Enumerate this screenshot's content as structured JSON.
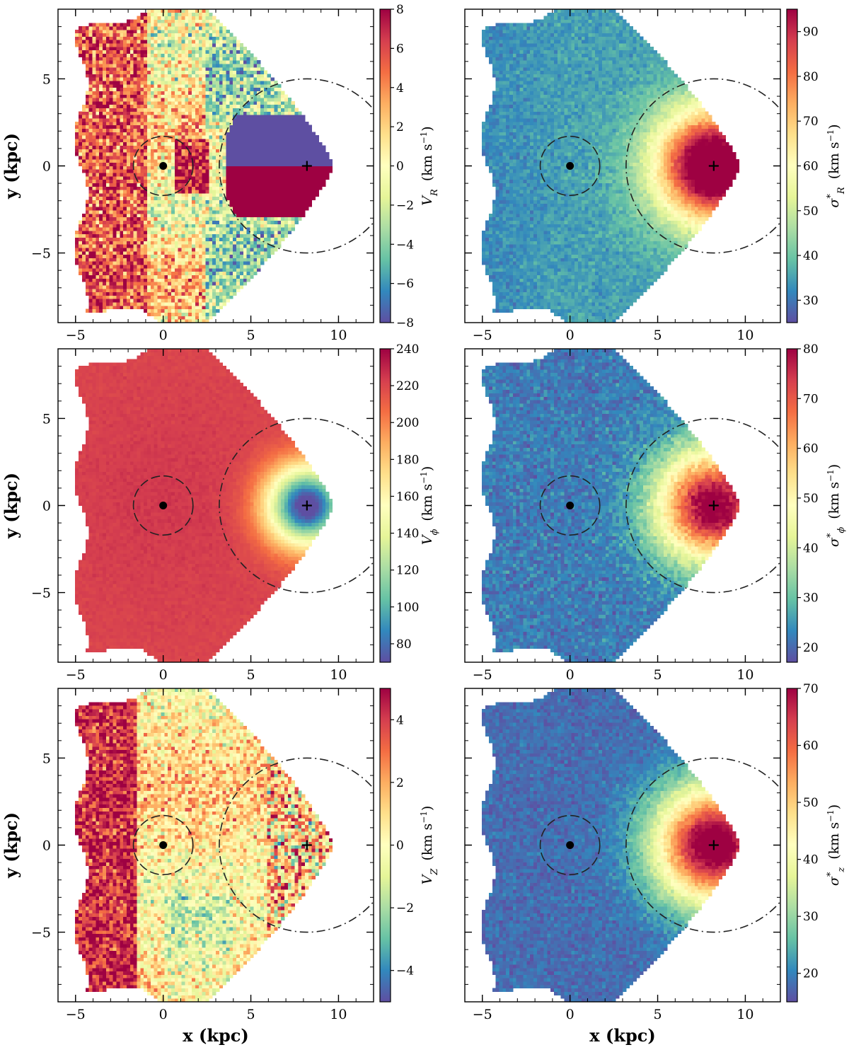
{
  "chart_data": [
    {
      "type": "heatmap",
      "panel": "top-left",
      "xlabel": "",
      "ylabel": "y (kpc)",
      "colorbar_label": "V_R (km s^-1)",
      "cbar_sym": "V",
      "cbar_sub": "R",
      "cbar_sup": "",
      "cbar_unit": "(km s",
      "colormap": "Spectral_r",
      "xlim": [
        -6,
        12
      ],
      "ylim": [
        -9,
        9
      ],
      "xticks": [
        -5,
        0,
        5,
        10
      ],
      "yticks": [
        -5,
        0,
        5
      ],
      "xtick_labels": [
        "−5",
        "0",
        "5",
        "10"
      ],
      "ytick_labels": [
        "−5",
        "0",
        "5"
      ],
      "cbar_range": [
        -8,
        8
      ],
      "cbar_ticks": [
        -8,
        -6,
        -4,
        -2,
        0,
        2,
        4,
        6,
        8
      ],
      "cbar_tick_labels": [
        "−8",
        "−6",
        "−4",
        "−2",
        "0",
        "2",
        "4",
        "6",
        "8"
      ],
      "field": "VR",
      "markers": [
        {
          "shape": "dot",
          "x": 0,
          "y": 0
        },
        {
          "shape": "plus",
          "x": 8.2,
          "y": 0
        }
      ],
      "circles": [
        {
          "cx": 0,
          "cy": 0,
          "r": 1.7
        },
        {
          "cx": 8.2,
          "cy": 0,
          "r": 5
        }
      ]
    },
    {
      "type": "heatmap",
      "panel": "top-right",
      "xlabel": "",
      "ylabel": "",
      "colorbar_label": "σ*_R (km s^-1)",
      "cbar_sym": "σ",
      "cbar_sub": "R",
      "cbar_sup": "*",
      "cbar_unit": "(km s",
      "colormap": "Spectral_r",
      "xlim": [
        -6,
        12
      ],
      "ylim": [
        -9,
        9
      ],
      "xticks": [
        -5,
        0,
        5,
        10
      ],
      "yticks": [
        -5,
        0,
        5
      ],
      "xtick_labels": [
        "−5",
        "0",
        "5",
        "10"
      ],
      "ytick_labels": [
        "",
        "",
        ""
      ],
      "cbar_range": [
        25,
        95
      ],
      "cbar_ticks": [
        30,
        40,
        50,
        60,
        70,
        80,
        90
      ],
      "cbar_tick_labels": [
        "30",
        "40",
        "50",
        "60",
        "70",
        "80",
        "90"
      ],
      "field": "SR",
      "markers": [
        {
          "shape": "dot",
          "x": 0,
          "y": 0
        },
        {
          "shape": "plus",
          "x": 8.2,
          "y": 0
        }
      ],
      "circles": [
        {
          "cx": 0,
          "cy": 0,
          "r": 1.7
        },
        {
          "cx": 8.2,
          "cy": 0,
          "r": 5
        }
      ]
    },
    {
      "type": "heatmap",
      "panel": "middle-left",
      "xlabel": "",
      "ylabel": "y (kpc)",
      "colorbar_label": "V_φ (km s^-1)",
      "cbar_sym": "V",
      "cbar_sub": "ϕ",
      "cbar_sup": "",
      "cbar_unit": "(km s",
      "colormap": "Spectral_r",
      "xlim": [
        -6,
        12
      ],
      "ylim": [
        -9,
        9
      ],
      "xticks": [
        -5,
        0,
        5,
        10
      ],
      "yticks": [
        -5,
        0,
        5
      ],
      "xtick_labels": [
        "−5",
        "0",
        "5",
        "10"
      ],
      "ytick_labels": [
        "−5",
        "0",
        "5"
      ],
      "cbar_range": [
        70,
        240
      ],
      "cbar_ticks": [
        80,
        100,
        120,
        140,
        160,
        180,
        200,
        220,
        240
      ],
      "cbar_tick_labels": [
        "80",
        "100",
        "120",
        "140",
        "160",
        "180",
        "200",
        "220",
        "240"
      ],
      "field": "VP",
      "markers": [
        {
          "shape": "dot",
          "x": 0,
          "y": 0
        },
        {
          "shape": "plus",
          "x": 8.2,
          "y": 0
        }
      ],
      "circles": [
        {
          "cx": 0,
          "cy": 0,
          "r": 1.7
        },
        {
          "cx": 8.2,
          "cy": 0,
          "r": 5
        }
      ]
    },
    {
      "type": "heatmap",
      "panel": "middle-right",
      "xlabel": "",
      "ylabel": "",
      "colorbar_label": "σ*_φ (km s^-1)",
      "cbar_sym": "σ",
      "cbar_sub": "ϕ",
      "cbar_sup": "*",
      "cbar_unit": "(km s",
      "colormap": "Spectral_r",
      "xlim": [
        -6,
        12
      ],
      "ylim": [
        -9,
        9
      ],
      "xticks": [
        -5,
        0,
        5,
        10
      ],
      "yticks": [
        -5,
        0,
        5
      ],
      "xtick_labels": [
        "−5",
        "0",
        "5",
        "10"
      ],
      "ytick_labels": [
        "",
        "",
        ""
      ],
      "cbar_range": [
        17,
        80
      ],
      "cbar_ticks": [
        20,
        30,
        40,
        50,
        60,
        70,
        80
      ],
      "cbar_tick_labels": [
        "20",
        "30",
        "40",
        "50",
        "60",
        "70",
        "80"
      ],
      "field": "SP",
      "markers": [
        {
          "shape": "dot",
          "x": 0,
          "y": 0
        },
        {
          "shape": "plus",
          "x": 8.2,
          "y": 0
        }
      ],
      "circles": [
        {
          "cx": 0,
          "cy": 0,
          "r": 1.7
        },
        {
          "cx": 8.2,
          "cy": 0,
          "r": 5
        }
      ]
    },
    {
      "type": "heatmap",
      "panel": "bottom-left",
      "xlabel": "x (kpc)",
      "ylabel": "y (kpc)",
      "colorbar_label": "V_Z (km s^-1)",
      "cbar_sym": "V",
      "cbar_sub": "Z",
      "cbar_sup": "",
      "cbar_unit": "(km s",
      "colormap": "Spectral_r",
      "xlim": [
        -6,
        12
      ],
      "ylim": [
        -9,
        9
      ],
      "xticks": [
        -5,
        0,
        5,
        10
      ],
      "yticks": [
        -5,
        0,
        5
      ],
      "xtick_labels": [
        "−5",
        "0",
        "5",
        "10"
      ],
      "ytick_labels": [
        "−5",
        "0",
        "5"
      ],
      "cbar_range": [
        -5,
        5
      ],
      "cbar_ticks": [
        -4,
        -2,
        0,
        2,
        4
      ],
      "cbar_tick_labels": [
        "−4",
        "−2",
        "0",
        "2",
        "4"
      ],
      "field": "VZ",
      "markers": [
        {
          "shape": "dot",
          "x": 0,
          "y": 0
        },
        {
          "shape": "plus",
          "x": 8.2,
          "y": 0
        }
      ],
      "circles": [
        {
          "cx": 0,
          "cy": 0,
          "r": 1.7
        },
        {
          "cx": 8.2,
          "cy": 0,
          "r": 5
        }
      ]
    },
    {
      "type": "heatmap",
      "panel": "bottom-right",
      "xlabel": "x (kpc)",
      "ylabel": "",
      "colorbar_label": "σ*_z (km s^-1)",
      "cbar_sym": "σ",
      "cbar_sub": "z",
      "cbar_sup": "*",
      "cbar_unit": "(km s",
      "colormap": "Spectral_r",
      "xlim": [
        -6,
        12
      ],
      "ylim": [
        -9,
        9
      ],
      "xticks": [
        -5,
        0,
        5,
        10
      ],
      "yticks": [
        -5,
        0,
        5
      ],
      "xtick_labels": [
        "−5",
        "0",
        "5",
        "10"
      ],
      "ytick_labels": [
        "",
        "",
        ""
      ],
      "cbar_range": [
        15,
        70
      ],
      "cbar_ticks": [
        20,
        30,
        40,
        50,
        60,
        70
      ],
      "cbar_tick_labels": [
        "20",
        "30",
        "40",
        "50",
        "60",
        "70"
      ],
      "field": "SZ",
      "markers": [
        {
          "shape": "dot",
          "x": 0,
          "y": 0
        },
        {
          "shape": "plus",
          "x": 8.2,
          "y": 0
        }
      ],
      "circles": [
        {
          "cx": 0,
          "cy": 0,
          "r": 1.7
        },
        {
          "cx": 8.2,
          "cy": 0,
          "r": 5
        }
      ]
    }
  ]
}
